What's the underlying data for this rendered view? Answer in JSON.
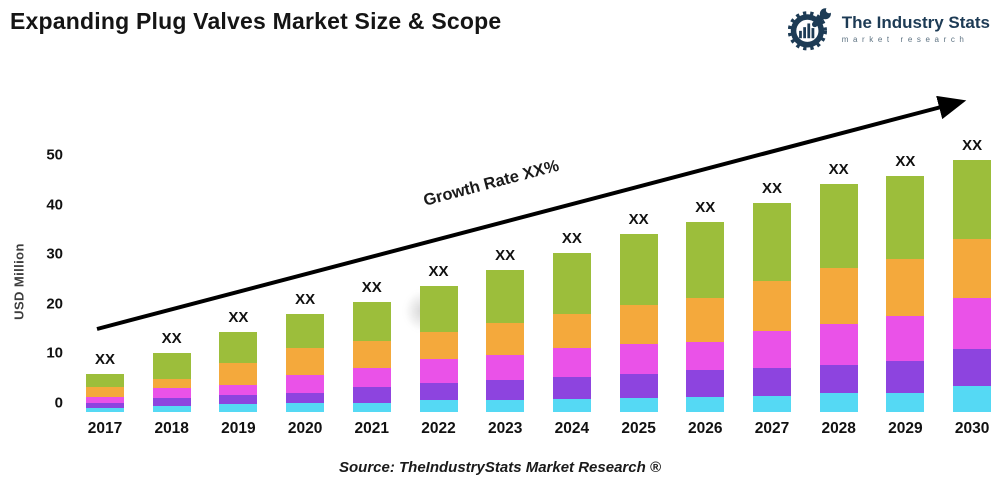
{
  "header": {
    "title": "Expanding Plug Valves Market Size & Scope"
  },
  "logo": {
    "name": "The Industry Stats",
    "tagline": "market research",
    "color": "#1d3b55"
  },
  "chart_data": {
    "type": "bar",
    "stacked": true,
    "ylabel": "USD Million",
    "y_ticks": [
      0,
      10,
      20,
      30,
      40,
      50
    ],
    "ylim": [
      0,
      55
    ],
    "grid": false,
    "legend": "none",
    "bar_value_label": "XX",
    "growth_label": "Growth Rate XX%",
    "categories": [
      "2017",
      "2018",
      "2019",
      "2020",
      "2021",
      "2022",
      "2023",
      "2024",
      "2025",
      "2026",
      "2027",
      "2028",
      "2029",
      "2030"
    ],
    "series": [
      {
        "name": "series-cyan-bottom",
        "color": "#55d9f4",
        "values": [
          0.8,
          1.2,
          1.6,
          1.8,
          1.8,
          2.4,
          2.4,
          2.6,
          2.8,
          3.0,
          3.2,
          3.8,
          3.8,
          5.2
        ]
      },
      {
        "name": "series-purple",
        "color": "#8d44df",
        "values": [
          1.0,
          1.6,
          1.8,
          2.0,
          3.2,
          3.4,
          4.0,
          4.4,
          4.8,
          5.4,
          5.6,
          5.6,
          6.4,
          7.4
        ]
      },
      {
        "name": "series-magenta",
        "color": "#ea52e8",
        "values": [
          1.2,
          2.0,
          2.0,
          3.6,
          3.8,
          4.8,
          5.0,
          5.8,
          6.2,
          5.8,
          7.6,
          8.4,
          9.2,
          10.4
        ]
      },
      {
        "name": "series-orange",
        "color": "#f4a93c",
        "values": [
          2.0,
          1.9,
          4.4,
          5.6,
          5.6,
          5.6,
          6.6,
          7.0,
          7.8,
          8.8,
          10.0,
          11.2,
          11.4,
          11.8
        ]
      },
      {
        "name": "series-green-top",
        "color": "#9cbe3b",
        "values": [
          2.6,
          5.2,
          6.4,
          6.8,
          7.8,
          9.2,
          10.6,
          12.2,
          14.2,
          15.4,
          15.8,
          17.0,
          16.8,
          16.0
        ]
      }
    ],
    "totals_estimated": [
      7.6,
      11.9,
      16.2,
      19.8,
      22.2,
      25.4,
      28.6,
      32.0,
      35.8,
      38.4,
      42.2,
      46.0,
      47.6,
      50.8
    ]
  },
  "footer": {
    "source": "Source: TheIndustryStats Market Research ®"
  }
}
